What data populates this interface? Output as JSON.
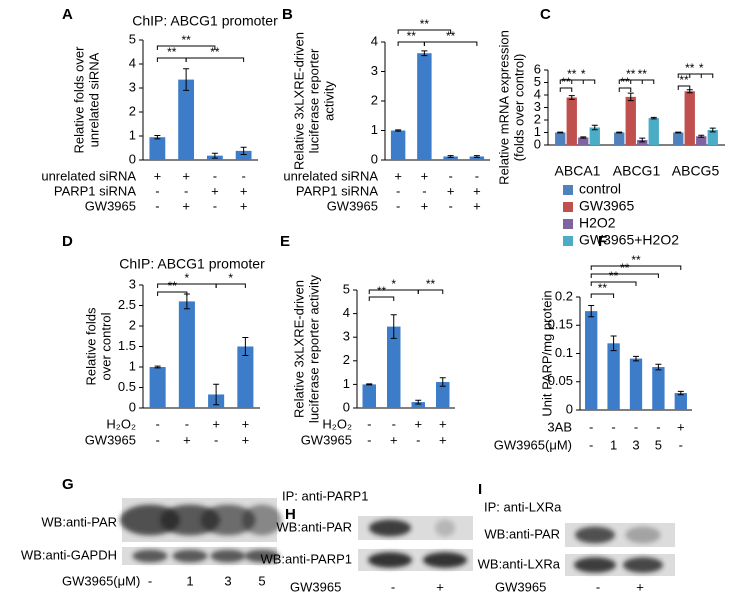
{
  "chart_data": [
    {
      "panel": "A",
      "type": "bar",
      "title": "ChIP: ABCG1 promoter",
      "y_label": [
        "Relative folds over",
        "unrelated siRNA"
      ],
      "values": [
        0.95,
        3.35,
        0.18,
        0.38
      ],
      "errors": [
        0.07,
        0.45,
        0.1,
        0.15
      ],
      "color": "#3d7cc9",
      "ylim": [
        0,
        5
      ],
      "yticks": [
        0,
        1,
        2,
        3,
        4,
        5
      ],
      "annotations": [
        "**",
        "**",
        "**"
      ],
      "conditions": [
        {
          "label": "unrelated siRNA",
          "marks": [
            "+",
            "+",
            "-",
            "-"
          ]
        },
        {
          "label": "PARP1 siRNA",
          "marks": [
            "-",
            "-",
            "+",
            "+"
          ]
        },
        {
          "label": "GW3965",
          "marks": [
            "-",
            "+",
            "-",
            "+"
          ]
        }
      ]
    },
    {
      "panel": "B",
      "type": "bar",
      "y_label": [
        "Relative 3xLXRE-driven",
        "luciferase reporter",
        "activity"
      ],
      "values": [
        1.0,
        3.62,
        0.12,
        0.12
      ],
      "errors": [
        0.02,
        0.08,
        0.03,
        0.03
      ],
      "color": "#3d7cc9",
      "ylim": [
        0,
        4
      ],
      "yticks": [
        0,
        1,
        2,
        3,
        4
      ],
      "annotations": [
        "**",
        "**",
        "**"
      ],
      "conditions": [
        {
          "label": "unrelated siRNA",
          "marks": [
            "+",
            "+",
            "-",
            "-"
          ]
        },
        {
          "label": "PARP1 siRNA",
          "marks": [
            "-",
            "-",
            "+",
            "+"
          ]
        },
        {
          "label": "GW3965",
          "marks": [
            "-",
            "+",
            "-",
            "+"
          ]
        }
      ]
    },
    {
      "panel": "C",
      "type": "grouped-bar",
      "y_label": [
        "Relative mRNA expression",
        "(folds over control)"
      ],
      "categories": [
        "ABCA1",
        "ABCG1",
        "ABCG5"
      ],
      "series": [
        {
          "name": "control",
          "color": "#4f81bd",
          "values": [
            1,
            1,
            1
          ],
          "errors": [
            0.03,
            0.03,
            0.03
          ]
        },
        {
          "name": "GW3965",
          "color": "#c0504d",
          "values": [
            3.8,
            3.85,
            4.3
          ],
          "errors": [
            0.15,
            0.3,
            0.12
          ]
        },
        {
          "name": "H2O2",
          "color": "#8064a2",
          "values": [
            0.6,
            0.4,
            0.7
          ],
          "errors": [
            0.05,
            0.15,
            0.08
          ]
        },
        {
          "name": "GW3965+H2O2",
          "color": "#4bacc6",
          "values": [
            1.4,
            2.15,
            1.2
          ],
          "errors": [
            0.18,
            0.06,
            0.15
          ]
        }
      ],
      "ylim": [
        0,
        6
      ],
      "yticks": [
        0,
        1,
        2,
        3,
        4,
        5,
        6
      ],
      "annotations": [
        "**",
        "**",
        "*",
        "**",
        "**",
        "**",
        "**",
        "**",
        "*"
      ]
    },
    {
      "panel": "D",
      "type": "bar",
      "title": "ChIP: ABCG1 promoter",
      "y_label": [
        "Relative folds",
        "over control"
      ],
      "values": [
        1.0,
        2.6,
        0.33,
        1.5
      ],
      "errors": [
        0.02,
        0.18,
        0.25,
        0.22
      ],
      "color": "#3d7cc9",
      "ylim": [
        0,
        3
      ],
      "yticks": [
        0,
        0.5,
        1,
        1.5,
        2,
        2.5,
        3
      ],
      "annotations": [
        "**",
        "*",
        "*"
      ],
      "conditions": [
        {
          "label": "H₂O₂",
          "marks": [
            "-",
            "-",
            "+",
            "+"
          ]
        },
        {
          "label": "GW3965",
          "marks": [
            "-",
            "+",
            "-",
            "+"
          ]
        }
      ]
    },
    {
      "panel": "E",
      "type": "bar",
      "y_label": [
        "Relative 3xLXRE-driven",
        "luciferase reporter activity"
      ],
      "values": [
        1.0,
        3.45,
        0.25,
        1.1
      ],
      "errors": [
        0.02,
        0.5,
        0.08,
        0.18
      ],
      "color": "#3d7cc9",
      "ylim": [
        0,
        5
      ],
      "yticks": [
        0,
        1,
        2,
        3,
        4,
        5
      ],
      "annotations": [
        "**",
        "*",
        "**"
      ],
      "conditions": [
        {
          "label": "H₂O₂",
          "marks": [
            "-",
            "-",
            "+",
            "+"
          ]
        },
        {
          "label": "GW3965",
          "marks": [
            "-",
            "+",
            "-",
            "+"
          ]
        }
      ]
    },
    {
      "panel": "F",
      "type": "bar",
      "y_label": [
        "Unit PARP/mg protein"
      ],
      "values": [
        0.175,
        0.118,
        0.091,
        0.076,
        0.03
      ],
      "errors": [
        0.01,
        0.013,
        0.004,
        0.005,
        0.003
      ],
      "color": "#3d7cc9",
      "ylim": [
        0,
        0.2
      ],
      "yticks": [
        0,
        0.05,
        0.1,
        0.15,
        0.2
      ],
      "annotations": [
        "**",
        "**",
        "**",
        "**"
      ],
      "conditions": [
        {
          "label": "3AB",
          "marks": [
            "-",
            "-",
            "-",
            "-",
            "+"
          ]
        },
        {
          "label": "GW3965(μM)",
          "marks": [
            "-",
            "1",
            "3",
            "5",
            "-"
          ]
        }
      ]
    }
  ],
  "blots": [
    {
      "panel": "G",
      "rows": [
        "WB:anti-PAR",
        "WB:anti-GAPDH"
      ],
      "treatment": {
        "label": "GW3965(μM)",
        "marks": [
          "-",
          "1",
          "3",
          "5"
        ]
      }
    },
    {
      "panel": "H",
      "ip": "IP: anti-PARP1",
      "rows": [
        "WB:anti-PAR",
        "WB:anti-PARP1"
      ],
      "treatment": {
        "label": "GW3965",
        "marks": [
          "-",
          "+"
        ]
      }
    },
    {
      "panel": "I",
      "ip": "IP: anti-LXRa",
      "rows": [
        "WB:anti-PAR",
        "WB:anti-LXRa"
      ],
      "treatment": {
        "label": "GW3965",
        "marks": [
          "-",
          "+"
        ]
      }
    }
  ]
}
